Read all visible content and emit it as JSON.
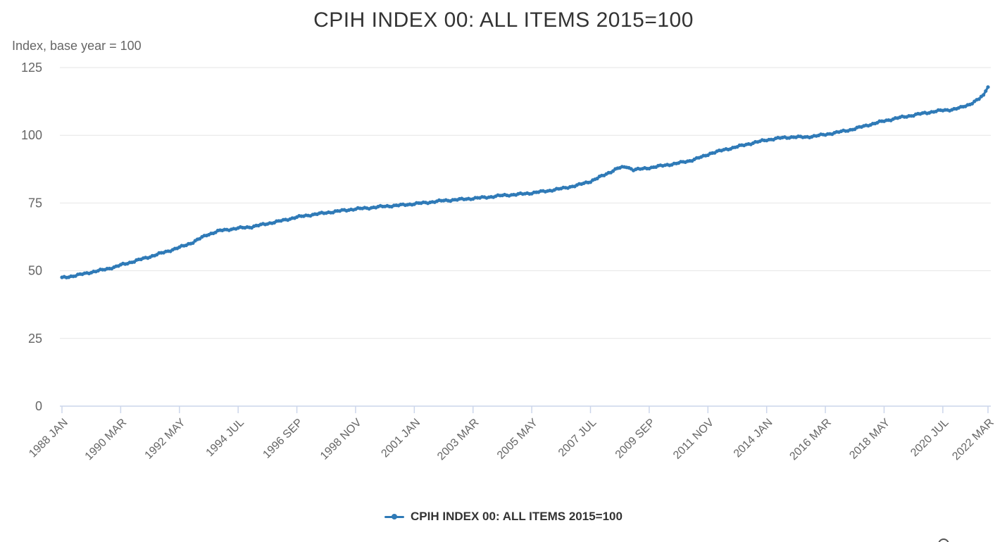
{
  "page": {
    "title": "CPIH INDEX 00: ALL ITEMS 2015=100",
    "subtitle": "Index, base year = 100"
  },
  "legend": {
    "label": "CPIH INDEX 00: ALL ITEMS 2015=100"
  },
  "icons": {
    "bottom_edge_button": "partial-circle-button"
  },
  "colors": {
    "series": "#2f7ab7",
    "grid": "#e6e6e6",
    "axis_line": "#ccd6eb",
    "tick_label": "#666666",
    "title_text": "#333333"
  },
  "chart_data": {
    "type": "line",
    "title": "CPIH INDEX 00: ALL ITEMS 2015=100",
    "xlabel": "",
    "ylabel": "Index, base year = 100",
    "ylim": [
      0,
      125
    ],
    "yticks": [
      0,
      25,
      50,
      75,
      100,
      125
    ],
    "grid": "horizontal",
    "legend_position": "bottom-center",
    "x_unit": "month",
    "x_start": "1988 JAN",
    "x_end": "2022 MAR",
    "xtick_labels": [
      "1988 JAN",
      "1990 MAR",
      "1992 MAY",
      "1994 JUL",
      "1996 SEP",
      "1998 NOV",
      "2001 JAN",
      "2003 MAR",
      "2005 MAY",
      "2007 JUL",
      "2009 SEP",
      "2011 NOV",
      "2014 JAN",
      "2016 MAR",
      "2018 MAY",
      "2020 JUL",
      "2022 MAR"
    ],
    "xtick_month_index": [
      0,
      26,
      52,
      78,
      104,
      130,
      156,
      182,
      208,
      234,
      260,
      286,
      312,
      338,
      364,
      390,
      410
    ],
    "series": [
      {
        "name": "CPIH INDEX 00: ALL ITEMS 2015=100",
        "color": "#2f7ab7",
        "frequency": "monthly",
        "months_total": 411,
        "anchor_points_month_value": [
          [
            0,
            47.4
          ],
          [
            6,
            48.2
          ],
          [
            12,
            49.3
          ],
          [
            18,
            50.3
          ],
          [
            24,
            51.5
          ],
          [
            26,
            52.1
          ],
          [
            32,
            53.5
          ],
          [
            39,
            55.2
          ],
          [
            46,
            57.0
          ],
          [
            52,
            58.6
          ],
          [
            58,
            60.5
          ],
          [
            64,
            63.2
          ],
          [
            70,
            64.8
          ],
          [
            78,
            65.7
          ],
          [
            84,
            66.2
          ],
          [
            91,
            67.4
          ],
          [
            98,
            68.6
          ],
          [
            104,
            69.8
          ],
          [
            110,
            70.6
          ],
          [
            117,
            71.4
          ],
          [
            124,
            72.2
          ],
          [
            130,
            72.8
          ],
          [
            136,
            73.2
          ],
          [
            143,
            73.8
          ],
          [
            150,
            74.2
          ],
          [
            156,
            74.7
          ],
          [
            163,
            75.3
          ],
          [
            169,
            75.9
          ],
          [
            176,
            76.3
          ],
          [
            182,
            76.7
          ],
          [
            189,
            77.2
          ],
          [
            195,
            77.8
          ],
          [
            202,
            78.2
          ],
          [
            208,
            78.7
          ],
          [
            215,
            79.5
          ],
          [
            221,
            80.3
          ],
          [
            228,
            81.5
          ],
          [
            234,
            83.0
          ],
          [
            240,
            85.3
          ],
          [
            246,
            87.8
          ],
          [
            250,
            88.4
          ],
          [
            253,
            87.3
          ],
          [
            257,
            87.6
          ],
          [
            260,
            88.0
          ],
          [
            266,
            88.8
          ],
          [
            272,
            89.6
          ],
          [
            278,
            90.6
          ],
          [
            284,
            92.2
          ],
          [
            287,
            93.3
          ],
          [
            293,
            94.6
          ],
          [
            299,
            95.8
          ],
          [
            305,
            97.0
          ],
          [
            312,
            98.3
          ],
          [
            318,
            99.0
          ],
          [
            324,
            99.4
          ],
          [
            329,
            99.3
          ],
          [
            334,
            99.8
          ],
          [
            338,
            100.3
          ],
          [
            344,
            101.2
          ],
          [
            350,
            102.2
          ],
          [
            357,
            103.8
          ],
          [
            364,
            105.3
          ],
          [
            370,
            106.4
          ],
          [
            376,
            107.3
          ],
          [
            382,
            108.2
          ],
          [
            387,
            108.9
          ],
          [
            390,
            109.2
          ],
          [
            394,
            109.5
          ],
          [
            398,
            110.2
          ],
          [
            402,
            111.5
          ],
          [
            406,
            113.4
          ],
          [
            408,
            114.9
          ],
          [
            410,
            117.8
          ]
        ]
      }
    ]
  }
}
